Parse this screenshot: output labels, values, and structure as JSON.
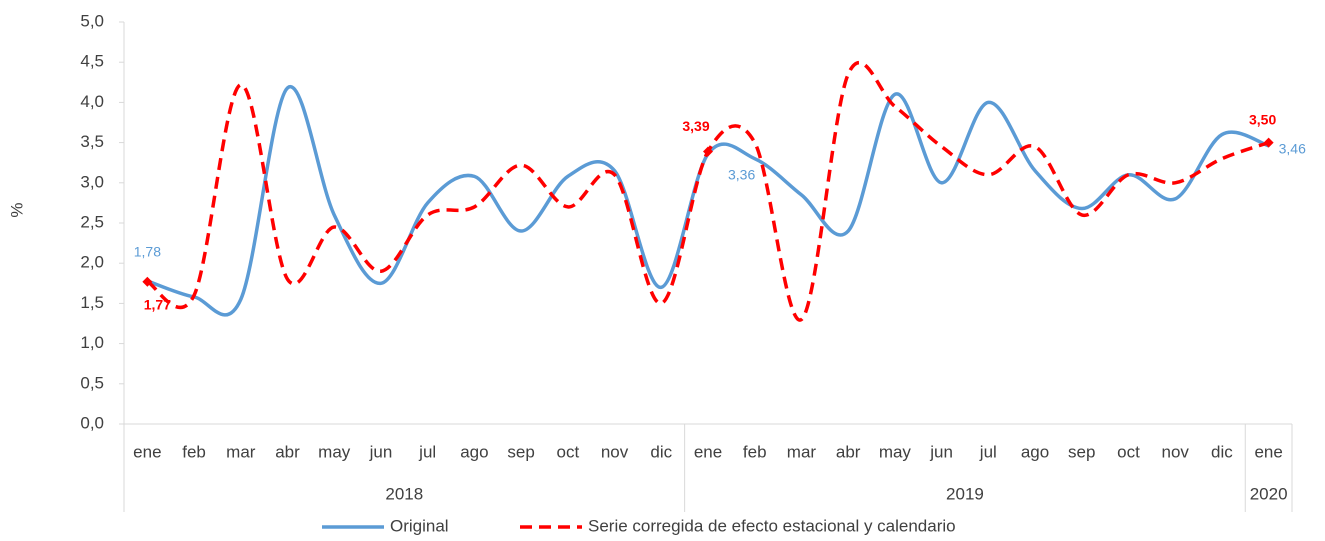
{
  "chart_data": {
    "type": "line",
    "y_label": "%",
    "categories": [
      "ene",
      "feb",
      "mar",
      "abr",
      "may",
      "jun",
      "jul",
      "ago",
      "sep",
      "oct",
      "nov",
      "dic",
      "ene",
      "feb",
      "mar",
      "abr",
      "may",
      "jun",
      "jul",
      "ago",
      "sep",
      "oct",
      "nov",
      "dic",
      "ene"
    ],
    "category_groups": [
      {
        "label": "2018",
        "size": 12
      },
      {
        "label": "2019",
        "size": 12
      },
      {
        "label": "2020",
        "size": 1
      }
    ],
    "series": [
      {
        "name": "Original",
        "color": "#5b9bd5",
        "dashed": false,
        "values": [
          1.78,
          1.58,
          1.55,
          4.18,
          2.6,
          1.75,
          2.75,
          3.08,
          2.4,
          3.08,
          3.15,
          1.7,
          3.36,
          3.3,
          2.85,
          2.4,
          4.1,
          3.0,
          4.0,
          3.15,
          2.68,
          3.1,
          2.8,
          3.6,
          3.46
        ],
        "value_labels": [
          "1,78",
          null,
          null,
          null,
          null,
          null,
          null,
          null,
          null,
          null,
          null,
          null,
          "3,36",
          null,
          null,
          null,
          null,
          null,
          null,
          null,
          null,
          null,
          null,
          null,
          "3,46"
        ]
      },
      {
        "name": "Serie corregida de efecto estacional y calendario",
        "color": "#ff0000",
        "dashed": true,
        "values": [
          1.77,
          1.6,
          4.22,
          1.8,
          2.45,
          1.9,
          2.6,
          2.7,
          3.22,
          2.7,
          3.1,
          1.5,
          3.39,
          3.5,
          1.3,
          4.35,
          3.95,
          3.45,
          3.1,
          3.45,
          2.6,
          3.1,
          3.0,
          3.3,
          3.5
        ],
        "value_labels": [
          "1,77",
          null,
          null,
          null,
          null,
          null,
          null,
          null,
          null,
          null,
          null,
          null,
          "3,39",
          null,
          null,
          null,
          null,
          null,
          null,
          null,
          null,
          null,
          null,
          null,
          "3,50"
        ]
      }
    ],
    "ylim": [
      0,
      5
    ],
    "yticks": [
      {
        "value": 0,
        "label": "0,0"
      },
      {
        "value": 0.5,
        "label": "0,5"
      },
      {
        "value": 1,
        "label": "1,0"
      },
      {
        "value": 1.5,
        "label": "1,5"
      },
      {
        "value": 2,
        "label": "2,0"
      },
      {
        "value": 2.5,
        "label": "2,5"
      },
      {
        "value": 3,
        "label": "3,0"
      },
      {
        "value": 3.5,
        "label": "3,5"
      },
      {
        "value": 4,
        "label": "4,0"
      },
      {
        "value": 4.5,
        "label": "4,5"
      },
      {
        "value": 5,
        "label": "5,0"
      }
    ],
    "grid": false,
    "legend": "bottom"
  }
}
